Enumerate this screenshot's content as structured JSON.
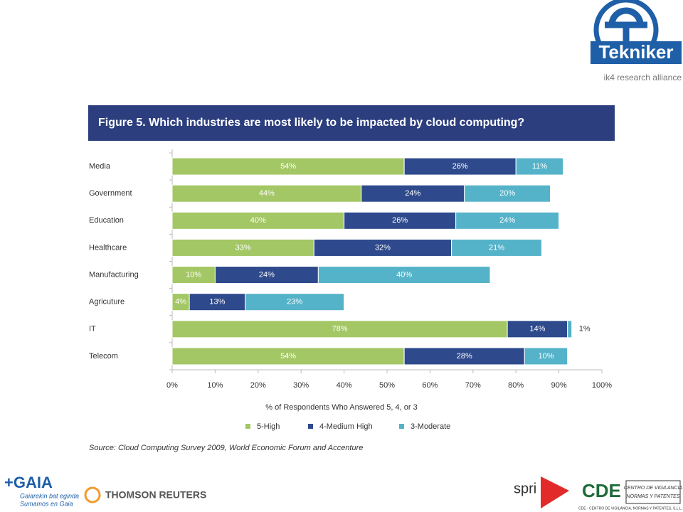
{
  "chart_data": {
    "type": "stacked-barh",
    "title": "Figure 5. Which industries are most likely to be impacted by cloud computing?",
    "categories": [
      "Media",
      "Government",
      "Education",
      "Healthcare",
      "Manufacturing",
      "Agricuture",
      "IT",
      "Telecom"
    ],
    "series": [
      {
        "name": "5-High",
        "color": "#a3c764",
        "values": [
          54,
          44,
          40,
          33,
          10,
          4,
          78,
          54
        ],
        "value_labels": [
          "54%",
          "44%",
          "40%",
          "33%",
          "10%",
          "4%",
          "78%",
          "54%"
        ]
      },
      {
        "name": "4-Medium High",
        "color": "#2e4a8c",
        "values": [
          26,
          24,
          26,
          32,
          24,
          13,
          14,
          28
        ],
        "value_labels": [
          "26%",
          "24%",
          "26%",
          "32%",
          "24%",
          "13%",
          "14%",
          "28%"
        ]
      },
      {
        "name": "3-Moderate",
        "color": "#55b3c9",
        "values": [
          11,
          20,
          24,
          21,
          40,
          23,
          1,
          10
        ],
        "value_labels": [
          "11%",
          "20%",
          "24%",
          "21%",
          "40%",
          "23%",
          "1%",
          "10%"
        ]
      }
    ],
    "xlim": [
      0,
      100
    ],
    "xticks": [
      {
        "value": 0,
        "label": "0%"
      },
      {
        "value": 10,
        "label": "10%"
      },
      {
        "value": 20,
        "label": "20%"
      },
      {
        "value": 30,
        "label": "30%"
      },
      {
        "value": 40,
        "label": "40%"
      },
      {
        "value": 50,
        "label": "50%"
      },
      {
        "value": 60,
        "label": "60%"
      },
      {
        "value": 70,
        "label": "70%"
      },
      {
        "value": 80,
        "label": "80%"
      },
      {
        "value": 90,
        "label": "90%"
      },
      {
        "value": 100,
        "label": "100%"
      }
    ],
    "xlabel": "% of Respondents Who Answered  5, 4, or 3",
    "source": "Source: Cloud Computing Survey 2009, World Economic Forum and Accenture",
    "legend": "bottom"
  },
  "logos": {
    "tekniker": "Tekniker",
    "ik4": "ik4 research alliance",
    "gaia": "+GAIA",
    "gaia_tagline_1": "Gaiarekin bat eginda",
    "gaia_tagline_2": "Sumamos en Gaia",
    "thomson": "THOMSON REUTERS",
    "spri": "spri",
    "cde": "CDE",
    "cde_box_1": "CENTRO DE VIGILANCIA",
    "cde_box_2": "NORMAS Y PATENTES",
    "cde_footer": "CDE - CENTRO DE VIGILANCIA, NORMAS Y PATENTES, S.L.L."
  }
}
